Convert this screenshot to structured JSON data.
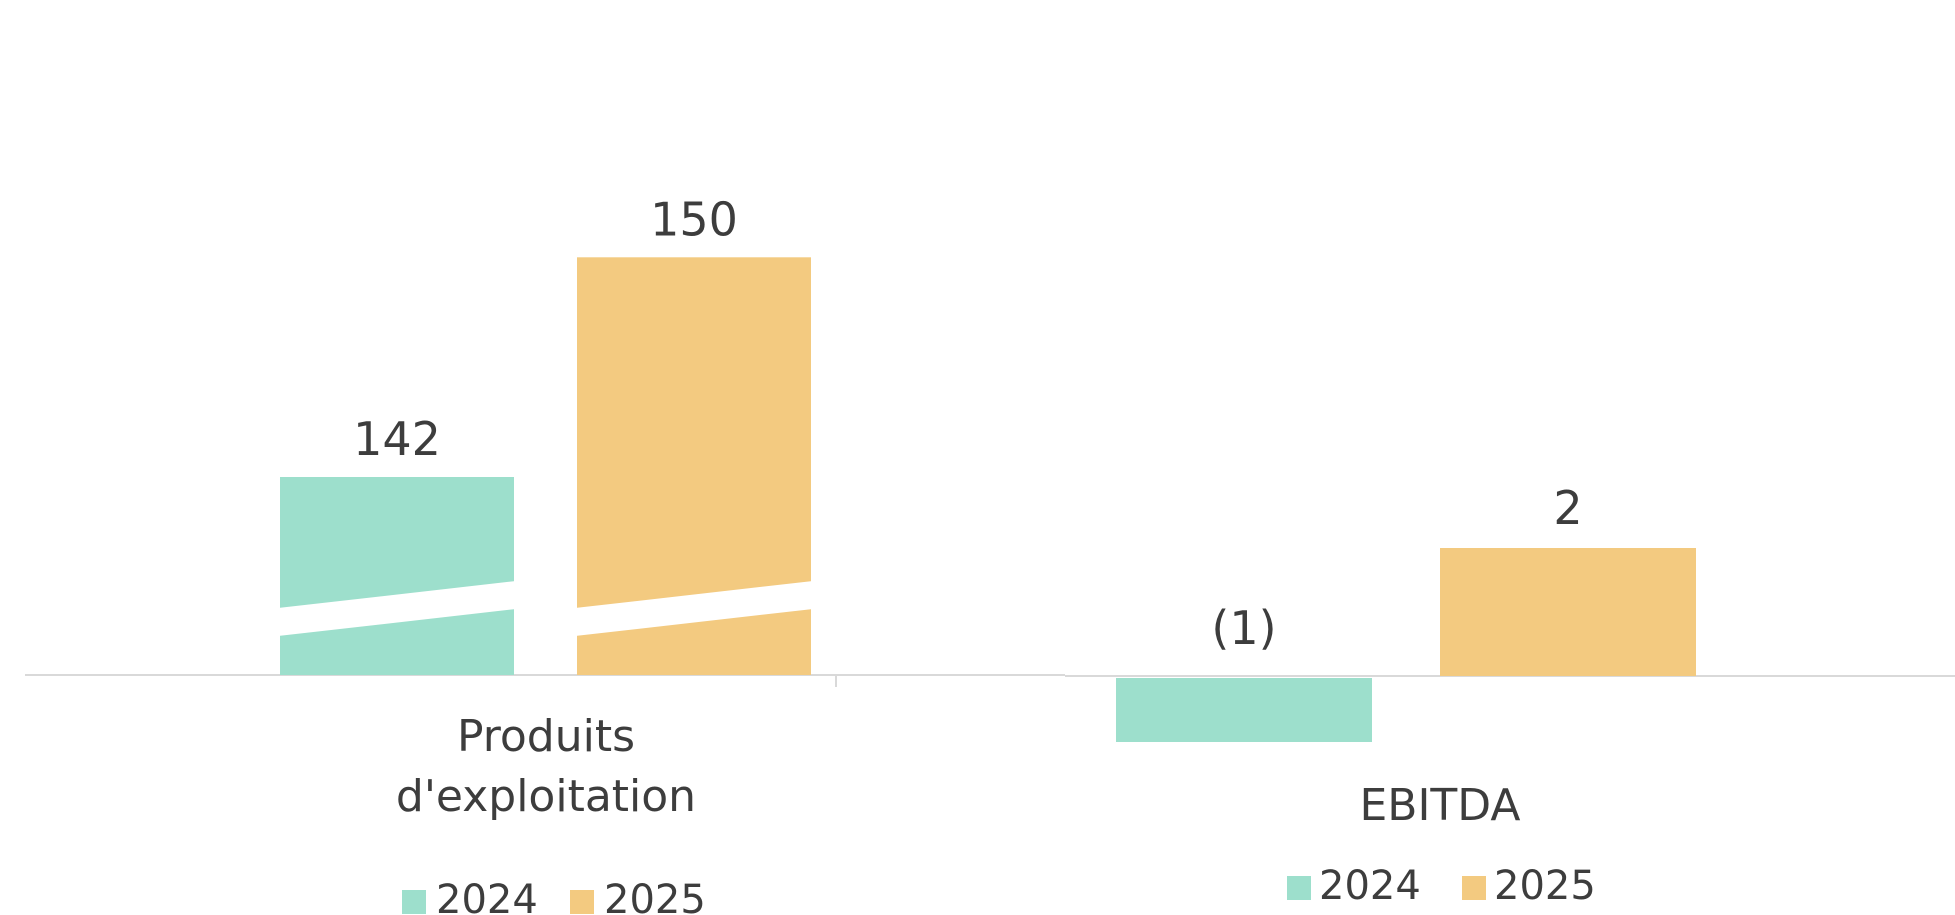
{
  "colors": {
    "y2024": "#9ddfcc",
    "y2025": "#f3ca80",
    "text": "#3d3d3d",
    "axis": "#d9d9d9"
  },
  "chart_data": [
    {
      "type": "bar",
      "categories": [
        "Produits d'exploitation"
      ],
      "category_lines": [
        [
          "Produits",
          "d'exploitation"
        ]
      ],
      "series": [
        {
          "name": "2024",
          "values": [
            142
          ],
          "labels": [
            "142"
          ]
        },
        {
          "name": "2025",
          "values": [
            150
          ],
          "labels": [
            "150"
          ]
        }
      ],
      "axis_break": true,
      "legend": {
        "position": "bottom",
        "entries": [
          "2024",
          "2025"
        ]
      }
    },
    {
      "type": "bar",
      "categories": [
        "EBITDA"
      ],
      "category_lines": [
        [
          "EBITDA"
        ]
      ],
      "series": [
        {
          "name": "2024",
          "values": [
            -1
          ],
          "labels": [
            "(1)"
          ]
        },
        {
          "name": "2025",
          "values": [
            2
          ],
          "labels": [
            "2"
          ]
        }
      ],
      "axis_break": false,
      "legend": {
        "position": "bottom",
        "entries": [
          "2024",
          "2025"
        ]
      }
    }
  ]
}
